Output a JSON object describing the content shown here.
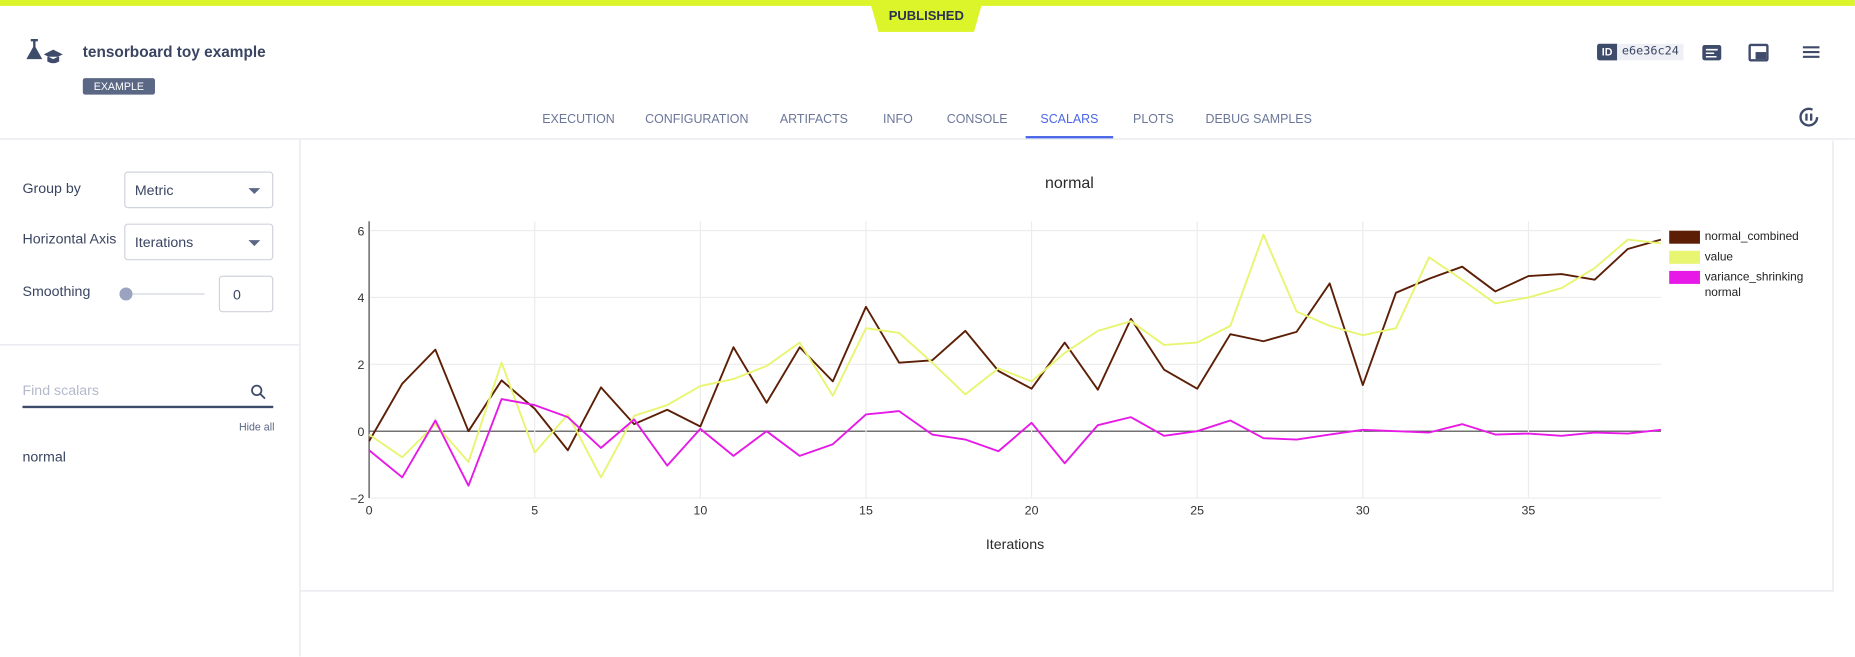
{
  "header": {
    "status": "PUBLISHED",
    "title": "tensorboard toy example",
    "tag": "EXAMPLE",
    "id_label": "ID",
    "id": "e6e36c24"
  },
  "tabs": [
    "EXECUTION",
    "CONFIGURATION",
    "ARTIFACTS",
    "INFO",
    "CONSOLE",
    "SCALARS",
    "PLOTS",
    "DEBUG SAMPLES"
  ],
  "sidebar": {
    "group_by_label": "Group by",
    "group_by": "Metric",
    "horizontal_axis_label": "Horizontal Axis",
    "horizontal_axis": "Iterations",
    "smoothing_label": "Smoothing",
    "smoothing": 0,
    "search_placeholder": "Find scalars",
    "hide_all": "Hide all",
    "metrics": [
      "normal"
    ]
  },
  "chart_data": {
    "type": "line",
    "title": "normal",
    "xlabel": "Iterations",
    "x": [
      0,
      1,
      2,
      3,
      4,
      5,
      6,
      7,
      8,
      9,
      10,
      11,
      12,
      13,
      14,
      15,
      16,
      17,
      18,
      19,
      20,
      21,
      22,
      23,
      24,
      25,
      26,
      27,
      28,
      29,
      30,
      31,
      32,
      33,
      34,
      35,
      36,
      37,
      38,
      39
    ],
    "series": [
      {
        "name": "normal_combined",
        "color": "#5c1f06",
        "values": [
          -0.3,
          1.42,
          2.44,
          0,
          1.52,
          0.67,
          -0.57,
          1.31,
          0.21,
          0.64,
          0.14,
          2.51,
          0.85,
          2.51,
          1.49,
          3.72,
          2.05,
          2.12,
          3.0,
          1.8,
          1.27,
          2.65,
          1.24,
          3.36,
          1.84,
          1.27,
          2.9,
          2.69,
          2.97,
          4.42,
          1.38,
          4.14,
          4.56,
          4.92,
          4.18,
          4.64,
          4.7,
          4.53,
          5.45,
          5.73
        ]
      },
      {
        "name": "value",
        "color": "#e8f570",
        "values": [
          -0.1,
          -0.78,
          0.21,
          -0.92,
          2.05,
          -0.64,
          0.5,
          -1.38,
          0.46,
          0.78,
          1.35,
          1.56,
          1.95,
          2.65,
          1.06,
          3.08,
          2.94,
          2.05,
          1.1,
          1.88,
          1.49,
          2.34,
          3.0,
          3.29,
          2.58,
          2.65,
          3.15,
          5.88,
          3.58,
          3.15,
          2.87,
          3.08,
          5.2,
          4.53,
          3.82,
          4.0,
          4.28,
          4.88,
          5.73,
          5.62
        ]
      },
      {
        "name": "variance_shrinking normal",
        "color": "#e619e6",
        "values": [
          -0.57,
          -1.38,
          0.32,
          -1.63,
          0.96,
          0.78,
          0.42,
          -0.5,
          0.35,
          -1.03,
          0.07,
          -0.74,
          0,
          -0.74,
          -0.39,
          0.5,
          0.6,
          -0.1,
          -0.25,
          -0.6,
          0.25,
          -0.96,
          0.18,
          0.42,
          -0.14,
          0,
          0.32,
          -0.21,
          -0.25,
          -0.1,
          0.04,
          0,
          -0.04,
          0.21,
          -0.1,
          -0.07,
          -0.14,
          -0.04,
          -0.07,
          0.04
        ]
      }
    ],
    "xlim": [
      0,
      39
    ],
    "ylim": [
      -2,
      6.28
    ],
    "xticks": [
      0,
      5,
      10,
      15,
      20,
      25,
      30,
      35
    ],
    "yticks": [
      {
        "value": -2,
        "label": "−2"
      },
      0,
      2,
      4,
      6
    ],
    "grid": true,
    "legend": "right"
  }
}
